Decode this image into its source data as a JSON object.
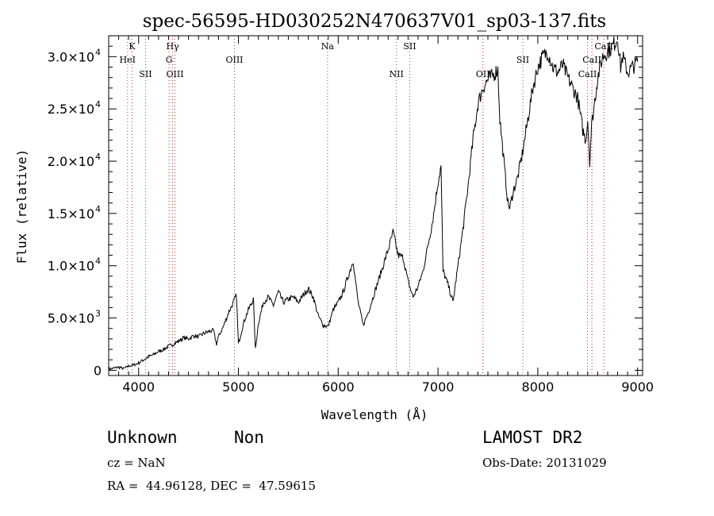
{
  "chart_data": {
    "type": "line",
    "title": "spec-56595-HD030252N470637V01_sp03-137.fits",
    "xlabel": "Wavelength (Å)",
    "ylabel": "Flux (relative)",
    "xlim": [
      3700,
      9050
    ],
    "ylim": [
      -500,
      32000
    ],
    "x_ticks": [
      4000,
      5000,
      6000,
      7000,
      8000,
      9000
    ],
    "x_tick_labels": [
      "4000",
      "5000",
      "6000",
      "7000",
      "8000",
      "9000"
    ],
    "y_ticks": [
      0,
      5000,
      10000,
      15000,
      20000,
      25000,
      30000
    ],
    "y_tick_labels": [
      {
        "mant": "0",
        "exp": ""
      },
      {
        "mant": "5.0×10",
        "exp": "3"
      },
      {
        "mant": "1.0×10",
        "exp": "4"
      },
      {
        "mant": "1.5×10",
        "exp": "4"
      },
      {
        "mant": "2.0×10",
        "exp": "4"
      },
      {
        "mant": "2.5×10",
        "exp": "4"
      },
      {
        "mant": "3.0×10",
        "exp": "4"
      }
    ],
    "series": [
      {
        "name": "flux",
        "color": "#000000",
        "x": [
          3700,
          3750,
          3800,
          3850,
          3900,
          3950,
          3980,
          4000,
          4050,
          4100,
          4150,
          4200,
          4250,
          4300,
          4350,
          4400,
          4450,
          4500,
          4550,
          4600,
          4650,
          4700,
          4750,
          4780,
          4800,
          4850,
          4900,
          4950,
          4980,
          5000,
          5050,
          5100,
          5150,
          5170,
          5200,
          5250,
          5300,
          5350,
          5400,
          5450,
          5500,
          5550,
          5600,
          5650,
          5700,
          5750,
          5800,
          5850,
          5900,
          5950,
          6000,
          6050,
          6100,
          6150,
          6180,
          6200,
          6250,
          6300,
          6350,
          6400,
          6450,
          6500,
          6550,
          6600,
          6650,
          6700,
          6750,
          6800,
          6850,
          6900,
          6950,
          7000,
          7030,
          7050,
          7100,
          7150,
          7200,
          7250,
          7300,
          7350,
          7400,
          7450,
          7500,
          7550,
          7600,
          7620,
          7650,
          7700,
          7720,
          7750,
          7800,
          7850,
          7900,
          7950,
          8000,
          8050,
          8100,
          8150,
          8200,
          8250,
          8300,
          8350,
          8400,
          8450,
          8480,
          8500,
          8520,
          8540,
          8560,
          8600,
          8650,
          8700,
          8750,
          8800,
          8830,
          8850,
          8900,
          8950,
          9000
        ],
        "y": [
          100,
          200,
          300,
          150,
          400,
          500,
          600,
          700,
          1000,
          1300,
          1500,
          1800,
          2000,
          2300,
          2500,
          2800,
          3100,
          3000,
          3300,
          3200,
          3500,
          3700,
          3800,
          2500,
          3200,
          4200,
          5500,
          6500,
          7200,
          2500,
          4500,
          5800,
          6800,
          2000,
          4500,
          6500,
          7000,
          6200,
          7500,
          6500,
          6800,
          7000,
          6500,
          7200,
          7800,
          7000,
          5200,
          4300,
          4200,
          5800,
          6500,
          7500,
          9000,
          10500,
          8000,
          6500,
          4300,
          5500,
          7000,
          8500,
          10000,
          11500,
          13200,
          11000,
          10800,
          8500,
          7000,
          8000,
          9500,
          12000,
          14500,
          18000,
          19500,
          9500,
          8200,
          6500,
          10000,
          13500,
          17500,
          22000,
          25500,
          27000,
          27800,
          28200,
          28800,
          24000,
          21000,
          16000,
          15500,
          17000,
          18500,
          21000,
          24000,
          27000,
          29000,
          30000,
          30500,
          29000,
          28500,
          29200,
          28000,
          27000,
          26000,
          23000,
          22000,
          24000,
          20000,
          23500,
          25000,
          28000,
          30000,
          30500,
          31000,
          31800,
          29000,
          30000,
          28500,
          29000,
          29500
        ]
      }
    ],
    "lines": [
      {
        "x": 3934,
        "color": "#d02020",
        "label": "K",
        "row": 0
      },
      {
        "x": 3889,
        "color": "#606060",
        "label": "HeI",
        "row": 1
      },
      {
        "x": 4070,
        "color": "#606060",
        "label": "SII",
        "row": 2
      },
      {
        "x": 4341,
        "color": "#d02020",
        "label": "Hγ",
        "row": 0
      },
      {
        "x": 4305,
        "color": "#d02020",
        "label": "G",
        "row": 1
      },
      {
        "x": 4364,
        "color": "#d02020",
        "label": "OIII",
        "row": 2
      },
      {
        "x": 4960,
        "color": "#606060",
        "label": "OIII",
        "row": 1
      },
      {
        "x": 5893,
        "color": "#606060",
        "label": "Na",
        "row": 0
      },
      {
        "x": 6583,
        "color": "#606060",
        "label": "NII",
        "row": 2
      },
      {
        "x": 6717,
        "color": "#606060",
        "label": "SII",
        "row": 0
      },
      {
        "x": 7450,
        "color": "#d02020",
        "label": "OII",
        "row": 2
      },
      {
        "x": 7850,
        "color": "#606060",
        "label": "SII",
        "row": 1
      },
      {
        "x": 8498,
        "color": "#d02020",
        "label": "CaII",
        "row": 2
      },
      {
        "x": 8542,
        "color": "#d02020",
        "label": "CaII",
        "row": 1
      },
      {
        "x": 8662,
        "color": "#d02020",
        "label": "CaII",
        "row": 0
      }
    ]
  },
  "footer": {
    "object_class": "Unknown",
    "object_subclass": "Non",
    "survey": "LAMOST DR2",
    "cz": "cz = NaN",
    "obs_date": "Obs-Date: 20131029",
    "coords": "RA =  44.96128, DEC =  47.59615"
  }
}
